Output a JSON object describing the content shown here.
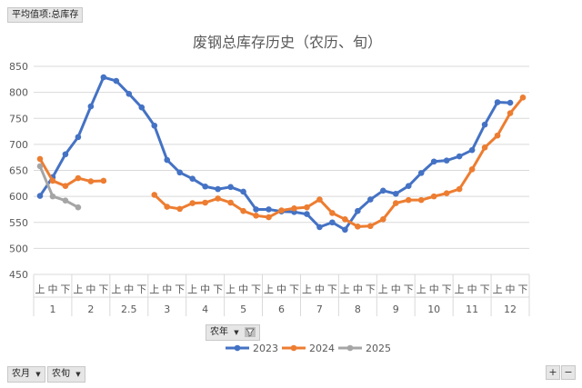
{
  "field_buttons": {
    "value_field": "平均值项:总库存",
    "legend_field": "农年",
    "row_field_1": "农月",
    "row_field_2": "农旬"
  },
  "zoom": {
    "plus": "+",
    "minus": "−"
  },
  "icons": {
    "dropdown": "dropdown-arrow-icon",
    "filter": "filter-icon"
  },
  "colors": {
    "2023": "#4472c4",
    "2024": "#ed7d31",
    "2025": "#a5a5a5",
    "grid": "#d9d9d9"
  },
  "chart_data": {
    "type": "line",
    "title": "废钢总库存历史（农历、旬）",
    "ylim": [
      450,
      850
    ],
    "yticks": [
      450,
      500,
      550,
      600,
      650,
      700,
      750,
      800,
      850
    ],
    "grid": true,
    "legend_position": "bottom",
    "month_groups": [
      "1",
      "2",
      "2.5",
      "3",
      "4",
      "5",
      "6",
      "7",
      "8",
      "9",
      "10",
      "11",
      "12"
    ],
    "xun_labels": [
      "上",
      "中",
      "下"
    ],
    "series": [
      {
        "name": "2023",
        "color": "#4472c4",
        "values": [
          601,
          637,
          681,
          714,
          773,
          829,
          822,
          797,
          771,
          736,
          670,
          646,
          634,
          619,
          614,
          618,
          609,
          575,
          575,
          571,
          570,
          566,
          541,
          550,
          536,
          572,
          594,
          611,
          605,
          620,
          645,
          667,
          669,
          677,
          689,
          738,
          781,
          780
        ]
      },
      {
        "name": "2024",
        "color": "#ed7d31",
        "values": [
          672,
          630,
          620,
          635,
          629,
          630,
          null,
          null,
          null,
          603,
          580,
          576,
          587,
          588,
          596,
          588,
          572,
          563,
          560,
          573,
          577,
          579,
          594,
          568,
          556,
          542,
          543,
          556,
          587,
          593,
          593,
          600,
          606,
          614,
          652,
          694,
          717,
          760,
          790
        ]
      },
      {
        "name": "2025",
        "color": "#a5a5a5",
        "values": [
          658,
          600,
          592,
          579
        ]
      }
    ]
  }
}
